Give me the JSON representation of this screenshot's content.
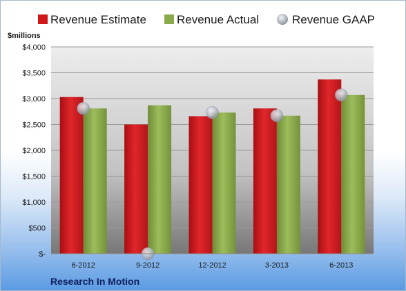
{
  "chart_data": {
    "type": "bar",
    "unit_label": "$millions",
    "footer_label": "Research In Motion",
    "categories": [
      "6-2012",
      "9-2012",
      "12-2012",
      "3-2013",
      "6-2013"
    ],
    "series": [
      {
        "name": "Revenue Estimate",
        "kind": "bar",
        "color": "#d0181c",
        "values": [
          3030,
          2500,
          2660,
          2810,
          3370
        ]
      },
      {
        "name": "Revenue Actual",
        "kind": "bar",
        "color": "#8aaa4a",
        "values": [
          2810,
          2870,
          2730,
          2670,
          3070
        ]
      },
      {
        "name": "Revenue GAAP",
        "kind": "marker",
        "color": "#b8bcc6",
        "values": [
          2810,
          0,
          2730,
          2670,
          3070
        ]
      }
    ],
    "y_ticks": [
      0,
      500,
      1000,
      1500,
      2000,
      2500,
      3000,
      3500,
      4000
    ],
    "y_tick_labels": [
      "$-",
      "$500",
      "$1,000",
      "$1,500",
      "$2,000",
      "$2,500",
      "$3,000",
      "$3,500",
      "$4,000"
    ],
    "ylim": [
      0,
      4000
    ],
    "grid": true,
    "legend_position": "top"
  }
}
